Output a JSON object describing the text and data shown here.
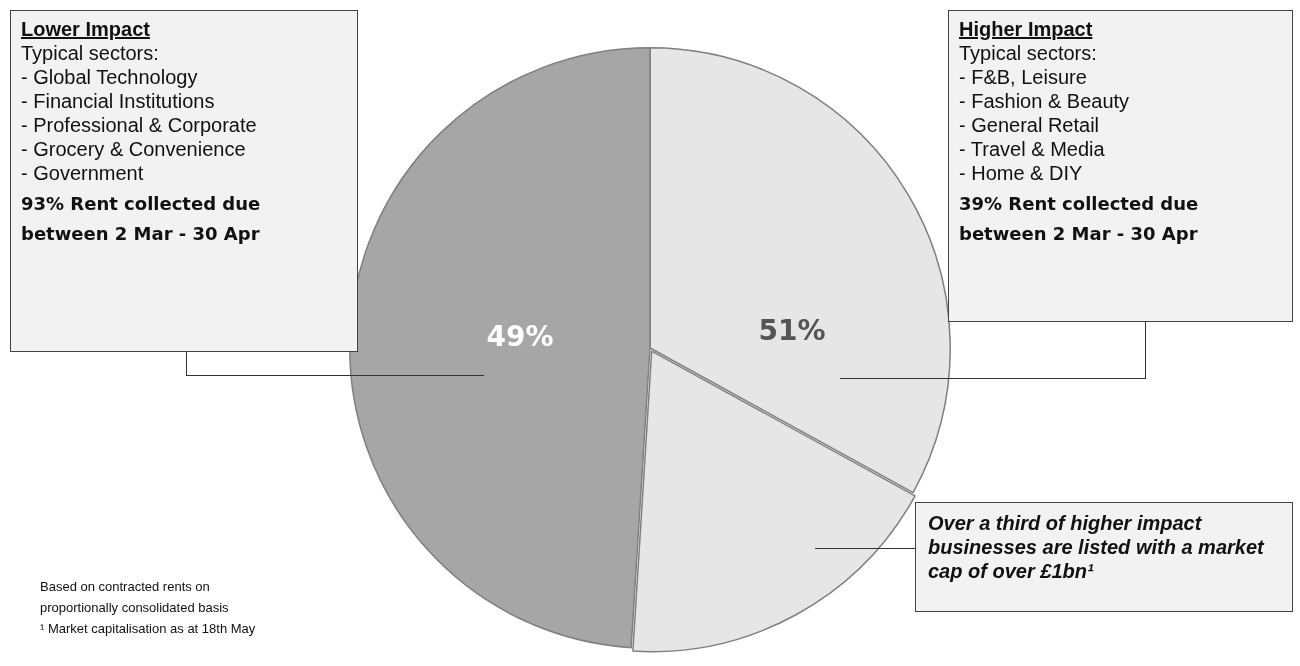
{
  "chart_data": {
    "type": "pie",
    "categories": [
      null,
      null,
      null
    ],
    "values": [
      33,
      18,
      49
    ],
    "colors": [
      "#e6e6e6",
      "#e6e6e6",
      "#a6a6a6"
    ],
    "value_labels": [
      null,
      null,
      "49%"
    ],
    "annotations": [
      "Lower Impact",
      "Typical sectors:\n- Global Technology\n- Financial Institutions\n- Professional & Corporate\n- Grocery & Convenience\n- Government",
      "93% Rent collected due between 2 Mar - 30 Apr",
      "Higher Impact",
      "Typical sectors:\n- F&B, Leisure\n- Fashion & Beauty\n- General Retail\n- Travel & Media\n- Home & DIY",
      "39% Rent collected due between 2 Mar - 30 Apr",
      "51%",
      "Over a third of higher impact businesses are listed with a market cap of over £1bn¹",
      "Based on contracted rents on proportionally consolidated basis",
      "¹ Market capitalisation as at 18th May"
    ],
    "legend": false
  }
}
